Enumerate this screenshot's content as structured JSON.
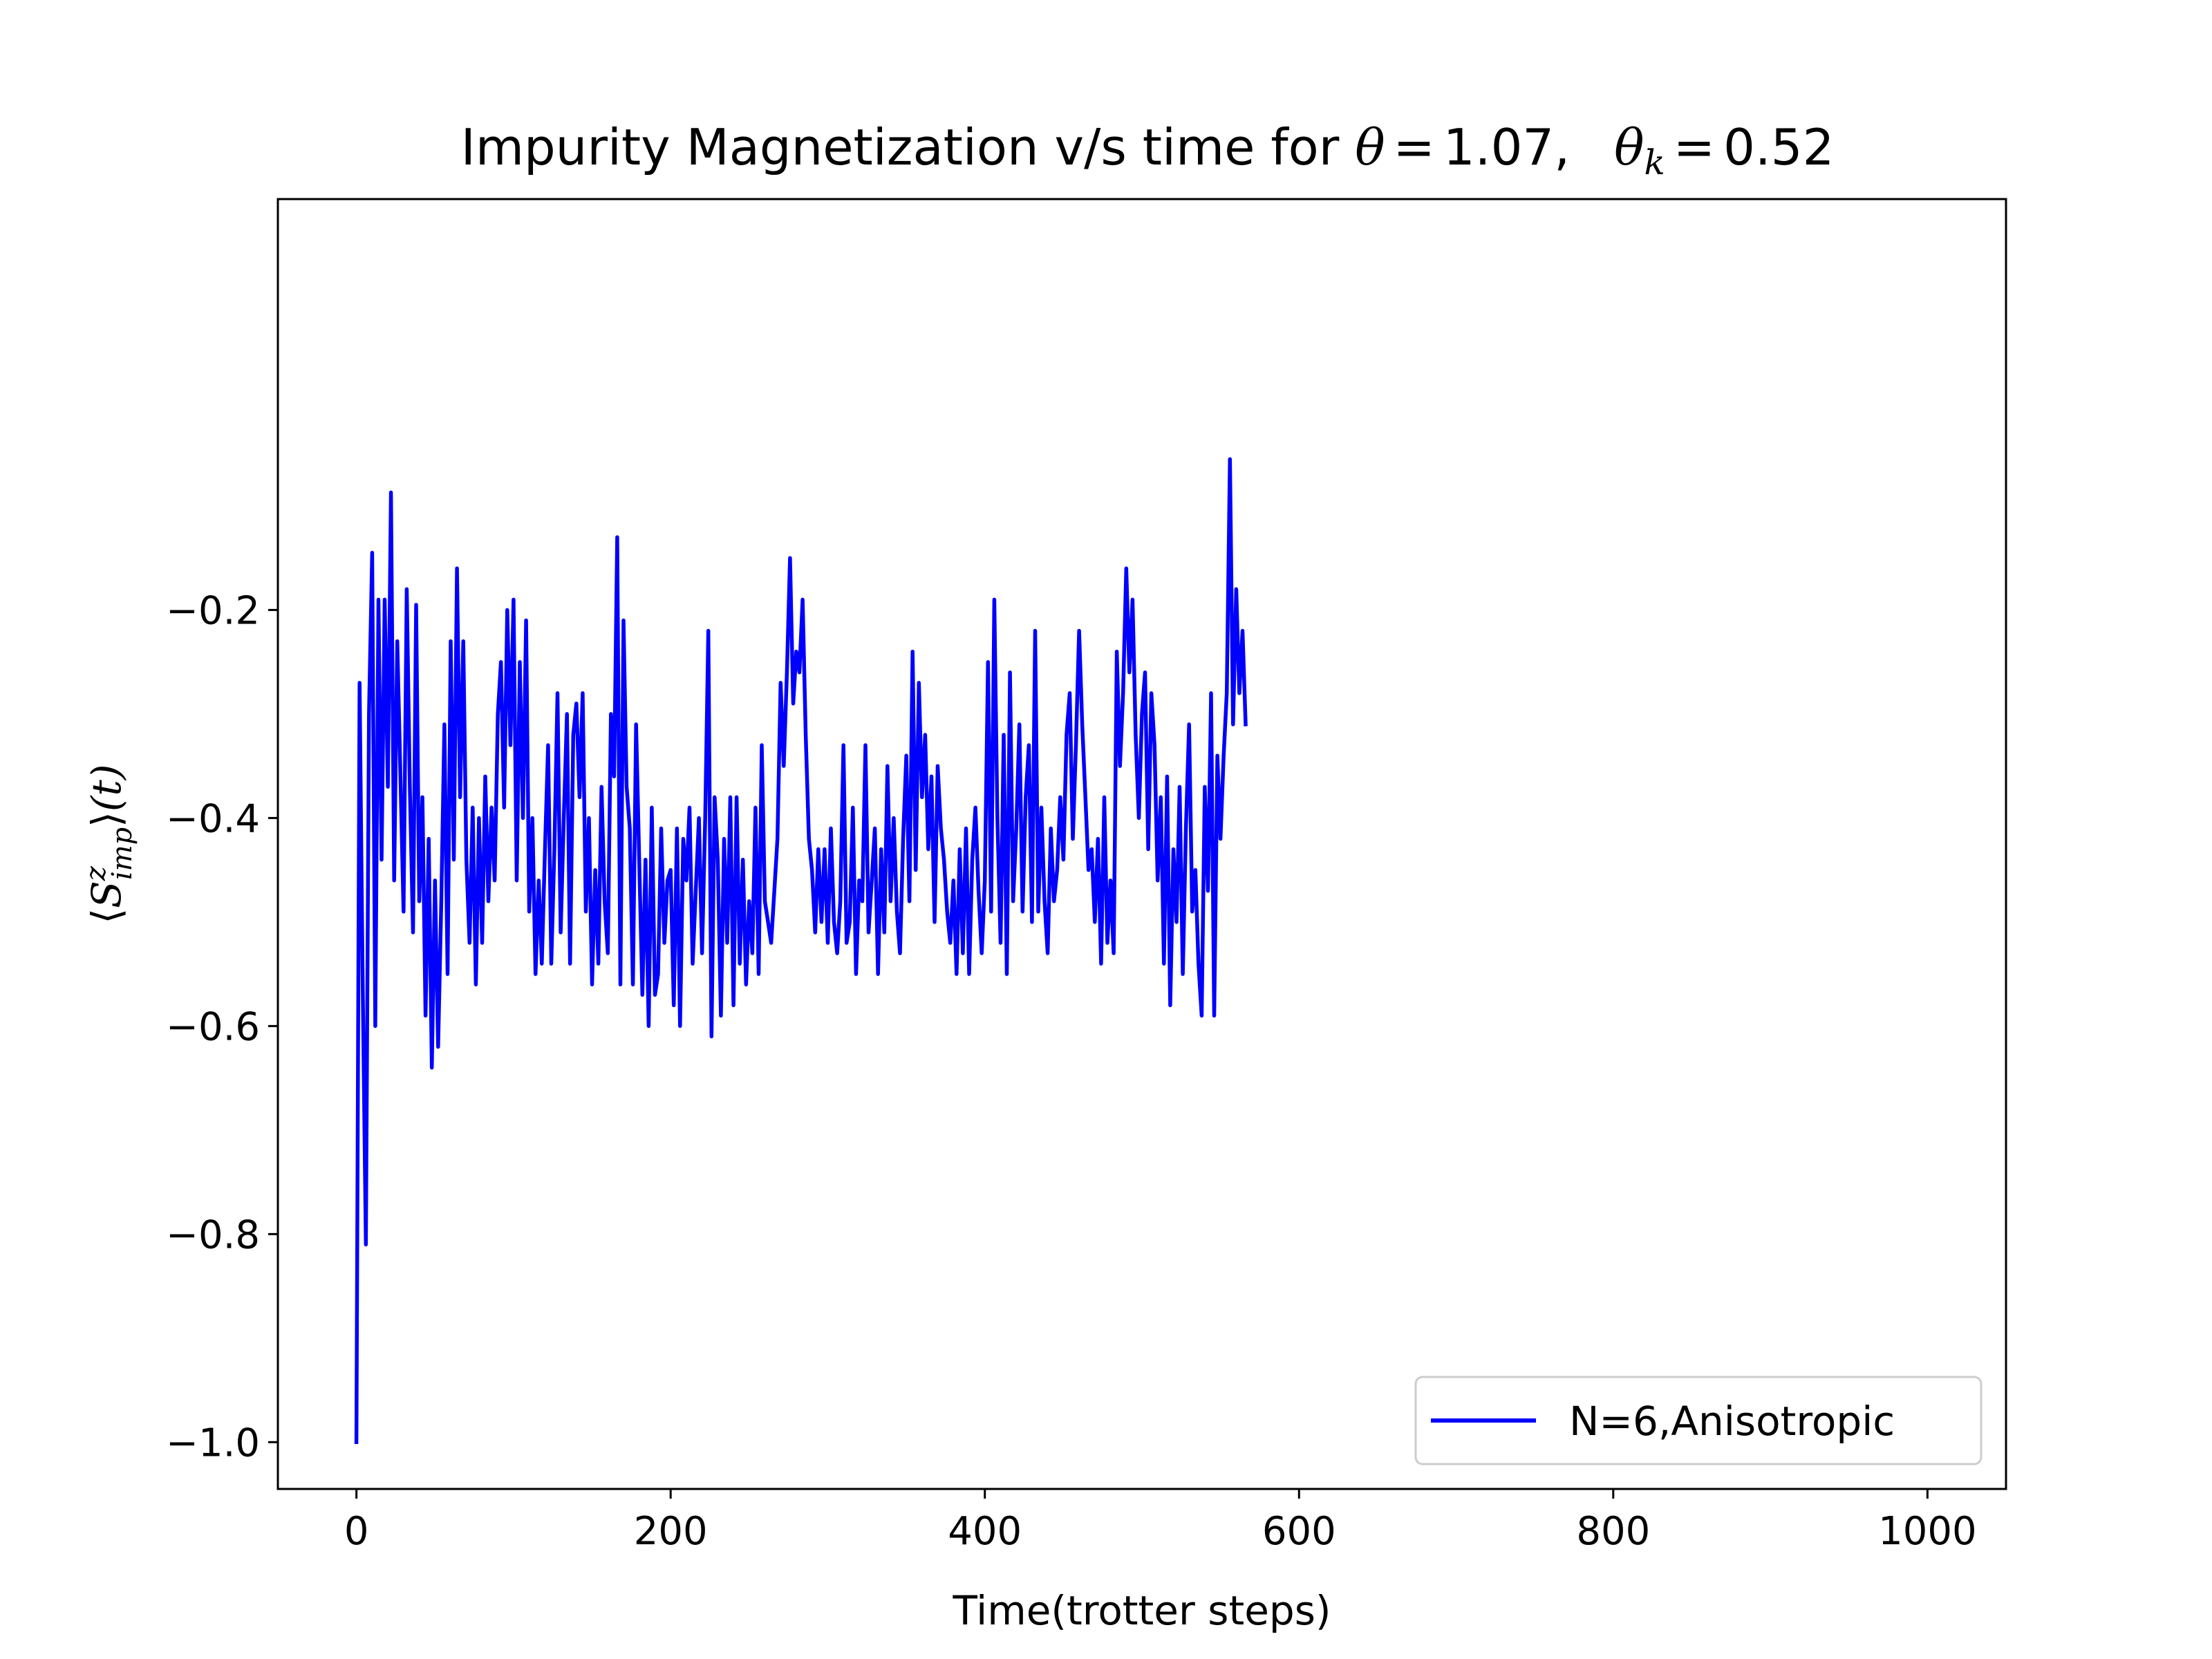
{
  "chart_data": {
    "type": "line",
    "title_text": "Impurity Magnetization v/s time for ",
    "title_math": {
      "theta_symbol": "θ",
      "theta_value": "1.07",
      "separator": ",",
      "theta_k_symbol": "θ",
      "theta_k_subscript": "k",
      "theta_k_value": "0.52",
      "equals": "="
    },
    "xlabel": "Time(trotter steps)",
    "ylabel": {
      "left_bracket": "⟨",
      "symbol": "S",
      "superscript": "z",
      "subscript": "imp",
      "right_bracket": "⟩",
      "argument": "(t)"
    },
    "xlim": [
      -50,
      1050
    ],
    "ylim": [
      -1.045,
      0.195
    ],
    "xticks": [
      0,
      200,
      400,
      600,
      800,
      1000
    ],
    "xtick_labels": [
      "0",
      "200",
      "400",
      "600",
      "800",
      "1000"
    ],
    "yticks": [
      -1.0,
      -0.8,
      -0.6,
      -0.4,
      -0.2
    ],
    "ytick_labels": [
      "−1.0",
      "−0.8",
      "−0.6",
      "−0.4",
      "−0.2"
    ],
    "grid": false,
    "legend_position": "lower-right",
    "series": [
      {
        "name": "N=6,Anisotropic",
        "color": "#0000ff",
        "x_start": 0,
        "x_step": 2,
        "values": [
          -1.0,
          -0.27,
          -0.56,
          -0.81,
          -0.3,
          -0.145,
          -0.6,
          -0.19,
          -0.44,
          -0.19,
          -0.37,
          -0.087,
          -0.46,
          -0.23,
          -0.36,
          -0.49,
          -0.18,
          -0.37,
          -0.51,
          -0.195,
          -0.48,
          -0.38,
          -0.59,
          -0.42,
          -0.64,
          -0.46,
          -0.62,
          -0.48,
          -0.31,
          -0.55,
          -0.23,
          -0.44,
          -0.16,
          -0.38,
          -0.23,
          -0.44,
          -0.52,
          -0.39,
          -0.56,
          -0.4,
          -0.52,
          -0.36,
          -0.48,
          -0.39,
          -0.46,
          -0.3,
          -0.25,
          -0.39,
          -0.2,
          -0.33,
          -0.19,
          -0.46,
          -0.25,
          -0.4,
          -0.21,
          -0.49,
          -0.4,
          -0.55,
          -0.46,
          -0.54,
          -0.43,
          -0.33,
          -0.54,
          -0.43,
          -0.28,
          -0.51,
          -0.4,
          -0.3,
          -0.54,
          -0.32,
          -0.29,
          -0.38,
          -0.28,
          -0.49,
          -0.4,
          -0.56,
          -0.45,
          -0.54,
          -0.37,
          -0.48,
          -0.53,
          -0.3,
          -0.36,
          -0.13,
          -0.56,
          -0.21,
          -0.37,
          -0.41,
          -0.56,
          -0.31,
          -0.44,
          -0.57,
          -0.44,
          -0.6,
          -0.39,
          -0.57,
          -0.55,
          -0.41,
          -0.52,
          -0.46,
          -0.45,
          -0.58,
          -0.41,
          -0.6,
          -0.42,
          -0.46,
          -0.39,
          -0.54,
          -0.47,
          -0.4,
          -0.53,
          -0.4,
          -0.22,
          -0.61,
          -0.38,
          -0.44,
          -0.59,
          -0.42,
          -0.52,
          -0.38,
          -0.58,
          -0.38,
          -0.54,
          -0.44,
          -0.56,
          -0.48,
          -0.53,
          -0.39,
          -0.55,
          -0.33,
          -0.48,
          -0.5,
          -0.52,
          -0.47,
          -0.42,
          -0.27,
          -0.35,
          -0.26,
          -0.15,
          -0.29,
          -0.24,
          -0.26,
          -0.19,
          -0.32,
          -0.42,
          -0.45,
          -0.51,
          -0.43,
          -0.5,
          -0.43,
          -0.52,
          -0.41,
          -0.5,
          -0.53,
          -0.48,
          -0.33,
          -0.52,
          -0.5,
          -0.39,
          -0.55,
          -0.46,
          -0.48,
          -0.33,
          -0.51,
          -0.46,
          -0.41,
          -0.55,
          -0.43,
          -0.51,
          -0.35,
          -0.48,
          -0.4,
          -0.49,
          -0.53,
          -0.42,
          -0.34,
          -0.48,
          -0.24,
          -0.45,
          -0.27,
          -0.38,
          -0.32,
          -0.43,
          -0.36,
          -0.5,
          -0.35,
          -0.41,
          -0.44,
          -0.49,
          -0.52,
          -0.46,
          -0.55,
          -0.43,
          -0.53,
          -0.41,
          -0.55,
          -0.44,
          -0.39,
          -0.47,
          -0.53,
          -0.46,
          -0.25,
          -0.49,
          -0.19,
          -0.4,
          -0.52,
          -0.32,
          -0.55,
          -0.26,
          -0.48,
          -0.41,
          -0.31,
          -0.49,
          -0.38,
          -0.33,
          -0.5,
          -0.22,
          -0.49,
          -0.39,
          -0.48,
          -0.53,
          -0.41,
          -0.48,
          -0.45,
          -0.38,
          -0.44,
          -0.32,
          -0.28,
          -0.42,
          -0.33,
          -0.22,
          -0.31,
          -0.38,
          -0.45,
          -0.43,
          -0.5,
          -0.42,
          -0.54,
          -0.38,
          -0.52,
          -0.46,
          -0.53,
          -0.24,
          -0.35,
          -0.28,
          -0.16,
          -0.26,
          -0.19,
          -0.32,
          -0.4,
          -0.3,
          -0.26,
          -0.43,
          -0.28,
          -0.33,
          -0.46,
          -0.38,
          -0.54,
          -0.36,
          -0.58,
          -0.43,
          -0.5,
          -0.37,
          -0.55,
          -0.41,
          -0.31,
          -0.49,
          -0.45,
          -0.54,
          -0.59,
          -0.37,
          -0.47,
          -0.28,
          -0.59,
          -0.34,
          -0.42,
          -0.34,
          -0.28,
          -0.055,
          -0.31,
          -0.18,
          -0.28,
          -0.22,
          -0.31
        ]
      }
    ]
  }
}
